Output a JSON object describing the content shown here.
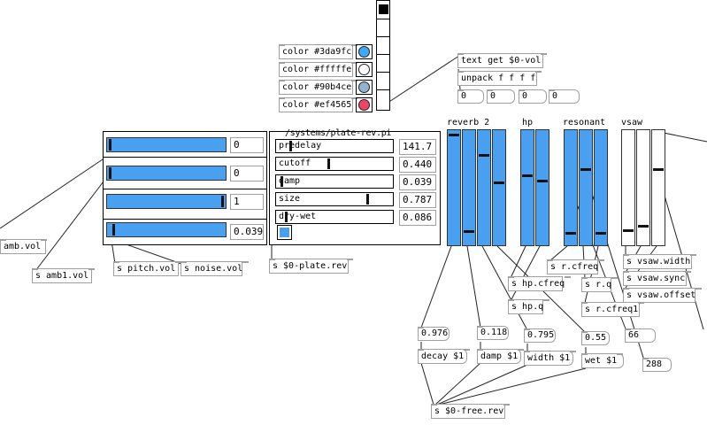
{
  "colors": {
    "c1": "#3da9fc",
    "c2": "#fffffe",
    "c3": "#90b4ce",
    "c4": "#ef4565",
    "slider_blue": "#4aa0f0"
  },
  "color_msgs": [
    "color #3da9fc",
    "color #fffffe",
    "color #90b4ce",
    "color #ef4565"
  ],
  "textget": "text get $0-vol",
  "unpack": "unpack f f f f",
  "unpack_outs": [
    "0",
    "0",
    "0",
    "0"
  ],
  "vol_sliders": [
    {
      "value": "0",
      "level": 0.0
    },
    {
      "value": "0",
      "level": 0.0
    },
    {
      "value": "1",
      "level": 1.0
    },
    {
      "value": "0.039",
      "level": 0.039
    }
  ],
  "sends_left": [
    "amb.vol",
    "s amb1.vol",
    "s pitch.vol",
    "s noise.vol"
  ],
  "plate": {
    "title": "/systems/plate-rev.pi",
    "params": [
      {
        "label": "predelay",
        "value": "141.7",
        "level": 0.11
      },
      {
        "label": "cutoff",
        "value": "0.440",
        "level": 0.44
      },
      {
        "label": "damp",
        "value": "0.039",
        "level": 0.04
      },
      {
        "label": "size",
        "value": "0.787",
        "level": 0.787
      },
      {
        "label": "dry-wet",
        "value": "0.086",
        "level": 0.09
      }
    ],
    "send": "s $0-plate.rev"
  },
  "groups": {
    "reverb": {
      "label": "reverb 2",
      "levels": [
        0.95,
        0.12,
        0.76,
        0.52
      ]
    },
    "hp": {
      "label": "hp",
      "levels": [
        0.59,
        0.55
      ]
    },
    "resonant": {
      "label": "resonant",
      "levels": [
        0.1,
        0.65,
        0.1
      ]
    },
    "vsaw": {
      "label": "vsaw",
      "levels": [
        0.13,
        0.17,
        0.66
      ]
    }
  },
  "sends_mid": [
    "s r.cfreq",
    "s hp.cfreq",
    "s hp.q",
    "s r.q",
    "s r.cfreq1"
  ],
  "sends_vsaw": [
    "s vsaw.width",
    "s vsaw.sync",
    "s vsaw.offset"
  ],
  "num_boxes": [
    "0.976",
    "0.118",
    "0.795",
    "0.55",
    "66",
    "288"
  ],
  "msgs": [
    "decay $1",
    "damp $1",
    "width $1",
    "wet $1"
  ],
  "free_rev": "s $0-free.rev"
}
